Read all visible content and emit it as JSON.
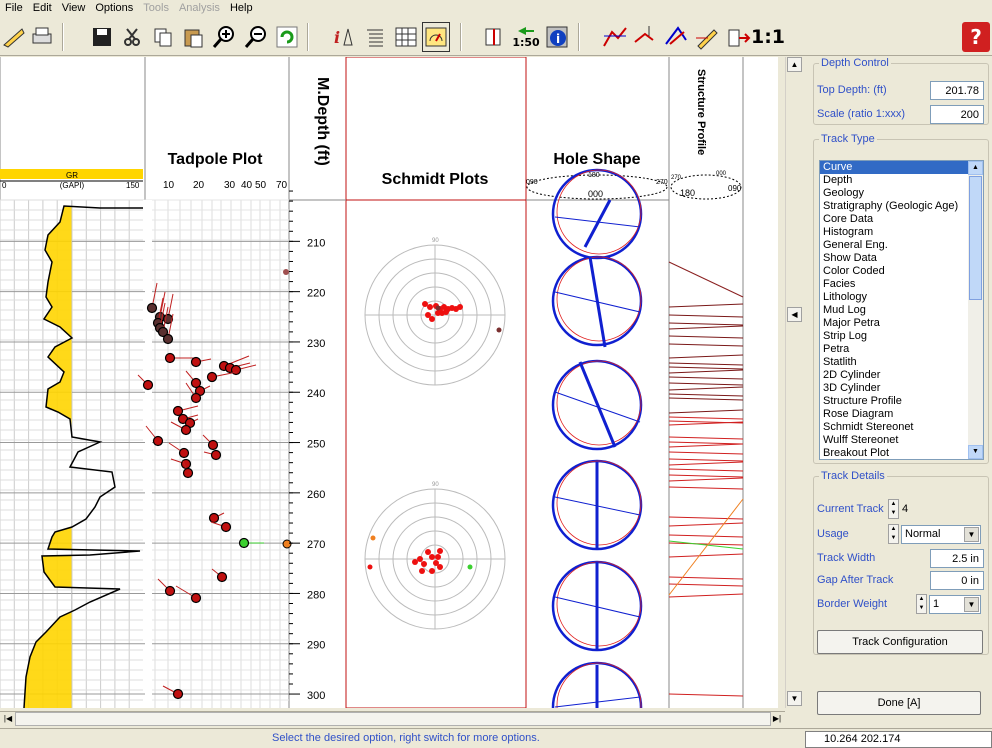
{
  "menu": [
    {
      "label": "File",
      "enabled": true
    },
    {
      "label": "Edit",
      "enabled": true
    },
    {
      "label": "View",
      "enabled": true
    },
    {
      "label": "Options",
      "enabled": true
    },
    {
      "label": "Tools",
      "enabled": false
    },
    {
      "label": "Analysis",
      "enabled": false
    },
    {
      "label": "Help",
      "enabled": true
    }
  ],
  "toolbar": {
    "scale_label": "1:50",
    "ratio_label": "1:1",
    "help_label": "?"
  },
  "tracks": {
    "gr": {
      "name": "GR",
      "unit": "(GAPI)",
      "min": "0",
      "max": "150",
      "color": "#ffd500"
    },
    "tadpole": {
      "title": "Tadpole Plot",
      "ticks": [
        "10",
        "20",
        "30",
        "40",
        "50",
        "70"
      ]
    },
    "depth": {
      "title": "M.Depth (ft)",
      "labels": [
        "210",
        "220",
        "230",
        "240",
        "250",
        "260",
        "270",
        "280",
        "290",
        "300"
      ]
    },
    "schmidt": {
      "title": "Schmidt Plots",
      "ring_label": "90"
    },
    "hole": {
      "title": "Hole Shape",
      "az_left": "090",
      "az_top": "180",
      "az_right": "270",
      "az_bottom": "000"
    },
    "structure": {
      "title": "Structure Profile",
      "az_a": "270",
      "az_b": "000",
      "az_c": "180",
      "az_d": "090"
    }
  },
  "depth_control": {
    "legend": "Depth Control",
    "top_depth_label": "Top Depth:  (ft)",
    "top_depth_value": "201.78",
    "scale_label": "Scale (ratio 1:xxx)",
    "scale_value": "200"
  },
  "track_type": {
    "legend": "Track Type",
    "items": [
      "Curve",
      "Depth",
      "Geology",
      "Stratigraphy (Geologic Age)",
      "Core Data",
      "Histogram",
      "General Eng.",
      "Show Data",
      "Color Coded",
      "Facies",
      "Lithology",
      "Mud Log",
      "Major Petra",
      "Strip Log",
      "Petra",
      "Statlith",
      "2D Cylinder",
      "3D Cylinder",
      "Structure Profile",
      "Rose Diagram",
      "Schmidt Stereonet",
      "Wulff Stereonet",
      "Breakout Plot"
    ],
    "selected": "Curve"
  },
  "track_details": {
    "legend": "Track Details",
    "current_track_label": "Current Track",
    "current_track_value": "4",
    "usage_label": "Usage",
    "usage_value": "Normal",
    "width_label": "Track Width",
    "width_value": "2.5 in",
    "gap_label": "Gap After Track",
    "gap_value": "0 in",
    "border_label": "Border Weight",
    "border_value": "1",
    "config_button": "Track Configuration"
  },
  "done_button": "Done [A]",
  "status": {
    "message": "Select the desired option, right switch for more options.",
    "coords": "10.264   202.174"
  }
}
